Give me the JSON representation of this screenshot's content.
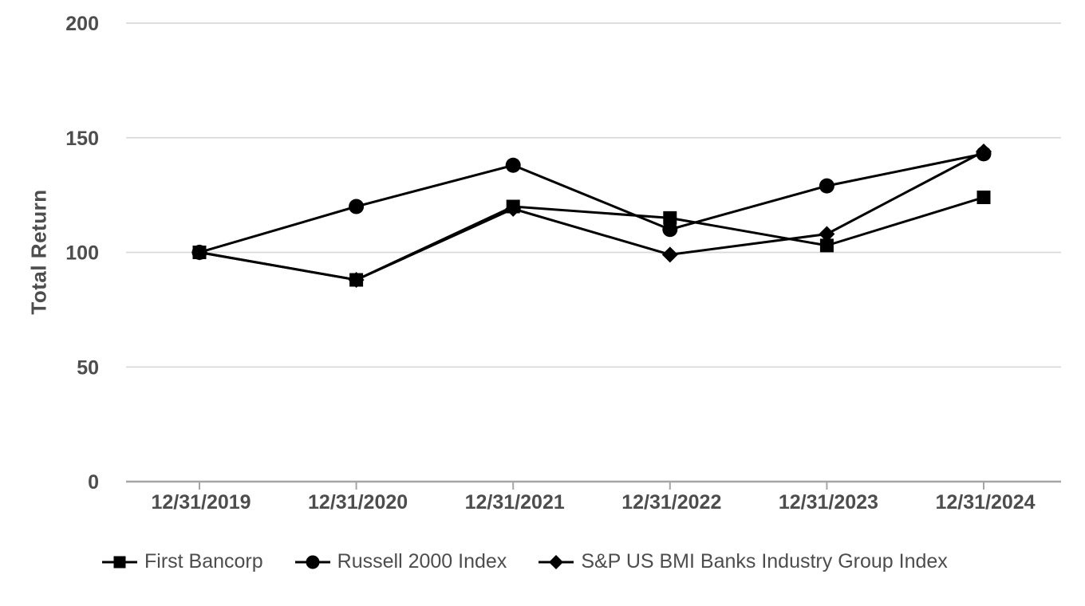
{
  "chart_data": {
    "type": "line",
    "title": "",
    "x": [
      "12/31/2019",
      "12/31/2020",
      "12/31/2021",
      "12/31/2022",
      "12/31/2023",
      "12/31/2024"
    ],
    "series": [
      {
        "name": "First Bancorp",
        "marker": "square",
        "values": [
          100,
          88,
          120,
          115,
          103,
          124
        ]
      },
      {
        "name": "Russell 2000 Index",
        "marker": "circle",
        "values": [
          100,
          120,
          138,
          110,
          129,
          143
        ]
      },
      {
        "name": "S&P US BMI Banks Industry Group Index",
        "marker": "diamond",
        "values": [
          100,
          88,
          119,
          99,
          108,
          144
        ]
      }
    ],
    "xlabel": "",
    "ylabel": "Total Return",
    "yticks": [
      0,
      50,
      100,
      150,
      200
    ],
    "ylim": [
      0,
      200
    ],
    "grid": true,
    "legend_position": "bottom",
    "series_color": "#000000"
  },
  "colors": {
    "line": "#000000",
    "grid": "#d9d9d9",
    "axis": "#a6a6a6",
    "tick_label": "#4d4d4d",
    "legend_text": "#4d4d4d",
    "background": "#ffffff"
  }
}
